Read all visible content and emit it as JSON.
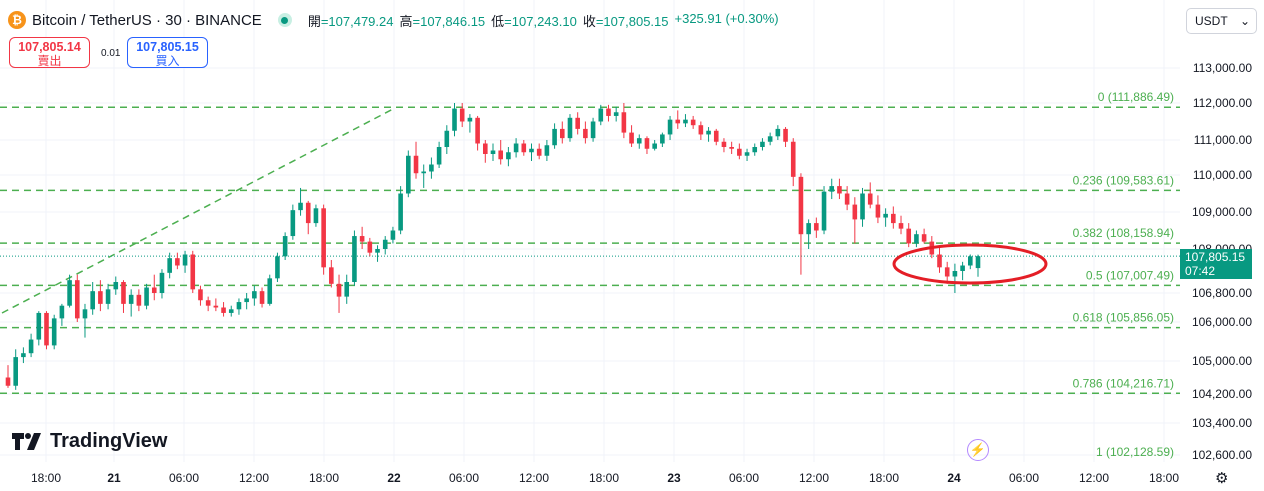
{
  "header": {
    "symbol_title": "Bitcoin / TetherUS · 30 · BINANCE",
    "open_label": "開",
    "open_value": "=107,479.24",
    "high_label": "高",
    "high_value": "=107,846.15",
    "low_label": "低",
    "low_value": "=107,243.10",
    "close_label": "收",
    "close_value": "=107,805.15",
    "change": "+325.91 (+0.30%)"
  },
  "trade": {
    "sell_price": "107,805.14",
    "sell_label": "賣出",
    "spread": "0.01",
    "buy_price": "107,805.15",
    "buy_label": "買入"
  },
  "currency_select": "USDT",
  "brand": "TradingView",
  "last_price_tag": {
    "price": "107,805.15",
    "countdown": "07:42"
  },
  "colors": {
    "up": "#089981",
    "down": "#f23645",
    "fib": "#4caf50",
    "annotation": "#e41e26"
  },
  "chart_data": {
    "type": "candlestick",
    "symbol": "BTCUSDT",
    "interval": "30",
    "x_ticks": [
      "18:00",
      "21",
      "06:00",
      "12:00",
      "18:00",
      "22",
      "06:00",
      "12:00",
      "18:00",
      "23",
      "06:00",
      "12:00",
      "18:00",
      "24",
      "06:00",
      "12:00",
      "18:00"
    ],
    "y_ticks": [
      "113,000.00",
      "112,000.00",
      "111,000.00",
      "110,000.00",
      "109,000.00",
      "108,000.00",
      "106,800.00",
      "106,000.00",
      "105,000.00",
      "104,200.00",
      "103,400.00",
      "102,600.00"
    ],
    "ylim": [
      102400,
      113600
    ],
    "fib_levels": [
      {
        "ratio": "0",
        "value": 111886.49,
        "label": "0 (111,886.49)"
      },
      {
        "ratio": "0.236",
        "value": 109583.61,
        "label": "0.236 (109,583.61)"
      },
      {
        "ratio": "0.382",
        "value": 108158.94,
        "label": "0.382 (108,158.94)"
      },
      {
        "ratio": "0.5",
        "value": 107007.49,
        "label": "0.5 (107,007.49)"
      },
      {
        "ratio": "0.618",
        "value": 105856.05,
        "label": "0.618 (105,856.05)"
      },
      {
        "ratio": "0.786",
        "value": 104216.71,
        "label": "0.786 (104,216.71)"
      },
      {
        "ratio": "1",
        "value": 102128.59,
        "label": "1 (102,128.59)"
      }
    ],
    "trend_line": {
      "from_value": 106200,
      "to_value": 111900
    },
    "highlight": "ellipse around latest candles near 107,800",
    "last_price": 107805.15,
    "candles": [
      [
        104600,
        104900,
        104350,
        104400
      ],
      [
        104400,
        105300,
        104300,
        105100
      ],
      [
        105100,
        105350,
        104950,
        105200
      ],
      [
        105200,
        105700,
        105100,
        105550
      ],
      [
        105550,
        106300,
        105400,
        106250
      ],
      [
        106250,
        106300,
        105300,
        105400
      ],
      [
        105400,
        106200,
        105300,
        106100
      ],
      [
        106100,
        106500,
        105900,
        106450
      ],
      [
        106450,
        107300,
        106400,
        107150
      ],
      [
        107150,
        107300,
        106000,
        106100
      ],
      [
        106100,
        106500,
        105600,
        106350
      ],
      [
        106350,
        107100,
        106200,
        106850
      ],
      [
        106850,
        107150,
        106300,
        106500
      ],
      [
        106500,
        107050,
        106350,
        106900
      ],
      [
        106900,
        107250,
        106750,
        107100
      ],
      [
        107100,
        107150,
        106250,
        106500
      ],
      [
        106500,
        106900,
        106150,
        106750
      ],
      [
        106750,
        106900,
        106300,
        106450
      ],
      [
        106450,
        107050,
        106350,
        106950
      ],
      [
        106950,
        107300,
        106600,
        106800
      ],
      [
        106800,
        107450,
        106650,
        107350
      ],
      [
        107350,
        107900,
        107200,
        107750
      ],
      [
        107750,
        107900,
        107450,
        107550
      ],
      [
        107550,
        107950,
        107350,
        107850
      ],
      [
        107850,
        107950,
        106800,
        106900
      ],
      [
        106900,
        107000,
        106450,
        106600
      ],
      [
        106600,
        106700,
        106300,
        106450
      ],
      [
        106450,
        106650,
        106300,
        106400
      ],
      [
        106400,
        106550,
        106150,
        106250
      ],
      [
        106250,
        106450,
        106150,
        106350
      ],
      [
        106350,
        106650,
        106200,
        106550
      ],
      [
        106550,
        106800,
        106350,
        106650
      ],
      [
        106650,
        107000,
        106450,
        106850
      ],
      [
        106850,
        106950,
        106400,
        106500
      ],
      [
        106500,
        107300,
        106450,
        107200
      ],
      [
        107200,
        107900,
        107100,
        107800
      ],
      [
        107800,
        108450,
        107700,
        108350
      ],
      [
        108350,
        109200,
        108250,
        109050
      ],
      [
        109050,
        109650,
        108900,
        109250
      ],
      [
        109250,
        109300,
        108400,
        108700
      ],
      [
        108700,
        109200,
        108600,
        109100
      ],
      [
        109100,
        109200,
        107300,
        107500
      ],
      [
        107500,
        107700,
        106950,
        107050
      ],
      [
        107050,
        107300,
        106250,
        106700
      ],
      [
        106700,
        107300,
        106500,
        107100
      ],
      [
        107100,
        108500,
        107000,
        108350
      ],
      [
        108350,
        108600,
        108000,
        108200
      ],
      [
        108200,
        108300,
        107800,
        107900
      ],
      [
        107900,
        108100,
        107650,
        108000
      ],
      [
        108000,
        108350,
        107850,
        108250
      ],
      [
        108250,
        108600,
        108150,
        108500
      ],
      [
        108500,
        109700,
        108400,
        109500
      ],
      [
        109500,
        110700,
        109400,
        110550
      ],
      [
        110550,
        110950,
        109900,
        110050
      ],
      [
        110050,
        110300,
        109650,
        110100
      ],
      [
        110100,
        110500,
        109900,
        110300
      ],
      [
        110300,
        110950,
        110200,
        110800
      ],
      [
        110800,
        111400,
        110600,
        111250
      ],
      [
        111250,
        112000,
        111100,
        111850
      ],
      [
        111850,
        112000,
        111350,
        111500
      ],
      [
        111500,
        111700,
        111200,
        111600
      ],
      [
        111600,
        111650,
        110700,
        110900
      ],
      [
        110900,
        111000,
        110350,
        110600
      ],
      [
        110600,
        110900,
        110400,
        110700
      ],
      [
        110700,
        111000,
        110300,
        110450
      ],
      [
        110450,
        110800,
        110250,
        110650
      ],
      [
        110650,
        111050,
        110500,
        110900
      ],
      [
        110900,
        111000,
        110550,
        110650
      ],
      [
        110650,
        110900,
        110400,
        110750
      ],
      [
        110750,
        110900,
        110450,
        110550
      ],
      [
        110550,
        111000,
        110400,
        110850
      ],
      [
        110850,
        111450,
        110750,
        111300
      ],
      [
        111300,
        111500,
        110900,
        111050
      ],
      [
        111050,
        111700,
        110950,
        111600
      ],
      [
        111600,
        111750,
        111150,
        111300
      ],
      [
        111300,
        111500,
        110900,
        111050
      ],
      [
        111050,
        111600,
        110950,
        111500
      ],
      [
        111500,
        111950,
        111400,
        111850
      ],
      [
        111850,
        111950,
        111500,
        111650
      ],
      [
        111650,
        111900,
        111500,
        111750
      ],
      [
        111750,
        112000,
        111050,
        111200
      ],
      [
        111200,
        111400,
        110800,
        110900
      ],
      [
        110900,
        111150,
        110750,
        111050
      ],
      [
        111050,
        111100,
        110600,
        110750
      ],
      [
        110750,
        111000,
        110700,
        110900
      ],
      [
        110900,
        111200,
        110800,
        111150
      ],
      [
        111150,
        111650,
        111000,
        111550
      ],
      [
        111550,
        111800,
        111300,
        111450
      ],
      [
        111450,
        111700,
        111350,
        111550
      ],
      [
        111550,
        111650,
        111300,
        111400
      ],
      [
        111400,
        111500,
        111000,
        111150
      ],
      [
        111150,
        111350,
        110950,
        111250
      ],
      [
        111250,
        111300,
        110850,
        110950
      ],
      [
        110950,
        111050,
        110650,
        110800
      ],
      [
        110800,
        110950,
        110600,
        110750
      ],
      [
        110750,
        110900,
        110450,
        110550
      ],
      [
        110550,
        110750,
        110400,
        110650
      ],
      [
        110650,
        110900,
        110550,
        110800
      ],
      [
        110800,
        111050,
        110700,
        110950
      ],
      [
        110950,
        111200,
        110850,
        111100
      ],
      [
        111100,
        111400,
        111000,
        111300
      ],
      [
        111300,
        111350,
        110800,
        110950
      ],
      [
        110950,
        111050,
        109700,
        109950
      ],
      [
        109950,
        110050,
        107300,
        108400
      ],
      [
        108400,
        108800,
        108000,
        108700
      ],
      [
        108700,
        108850,
        108300,
        108500
      ],
      [
        108500,
        109700,
        108400,
        109550
      ],
      [
        109550,
        109900,
        109350,
        109700
      ],
      [
        109700,
        109900,
        109350,
        109500
      ],
      [
        109500,
        109700,
        109050,
        109200
      ],
      [
        109200,
        109400,
        108150,
        108800
      ],
      [
        108800,
        109650,
        108600,
        109500
      ],
      [
        109500,
        109800,
        109100,
        109200
      ],
      [
        109200,
        109450,
        108700,
        108850
      ],
      [
        108850,
        109100,
        108600,
        108950
      ],
      [
        108950,
        109150,
        108550,
        108700
      ],
      [
        108700,
        108900,
        108400,
        108550
      ],
      [
        108550,
        108700,
        108050,
        108150
      ],
      [
        108150,
        108500,
        108050,
        108400
      ],
      [
        108400,
        108550,
        108150,
        108200
      ],
      [
        108200,
        108350,
        107750,
        107850
      ],
      [
        107850,
        108050,
        107350,
        107500
      ],
      [
        107500,
        107650,
        107050,
        107250
      ],
      [
        107250,
        107600,
        106800,
        107400
      ],
      [
        107400,
        107650,
        107150,
        107550
      ],
      [
        107550,
        107850,
        107450,
        107800
      ],
      [
        107480,
        107846,
        107243,
        107805
      ]
    ]
  }
}
